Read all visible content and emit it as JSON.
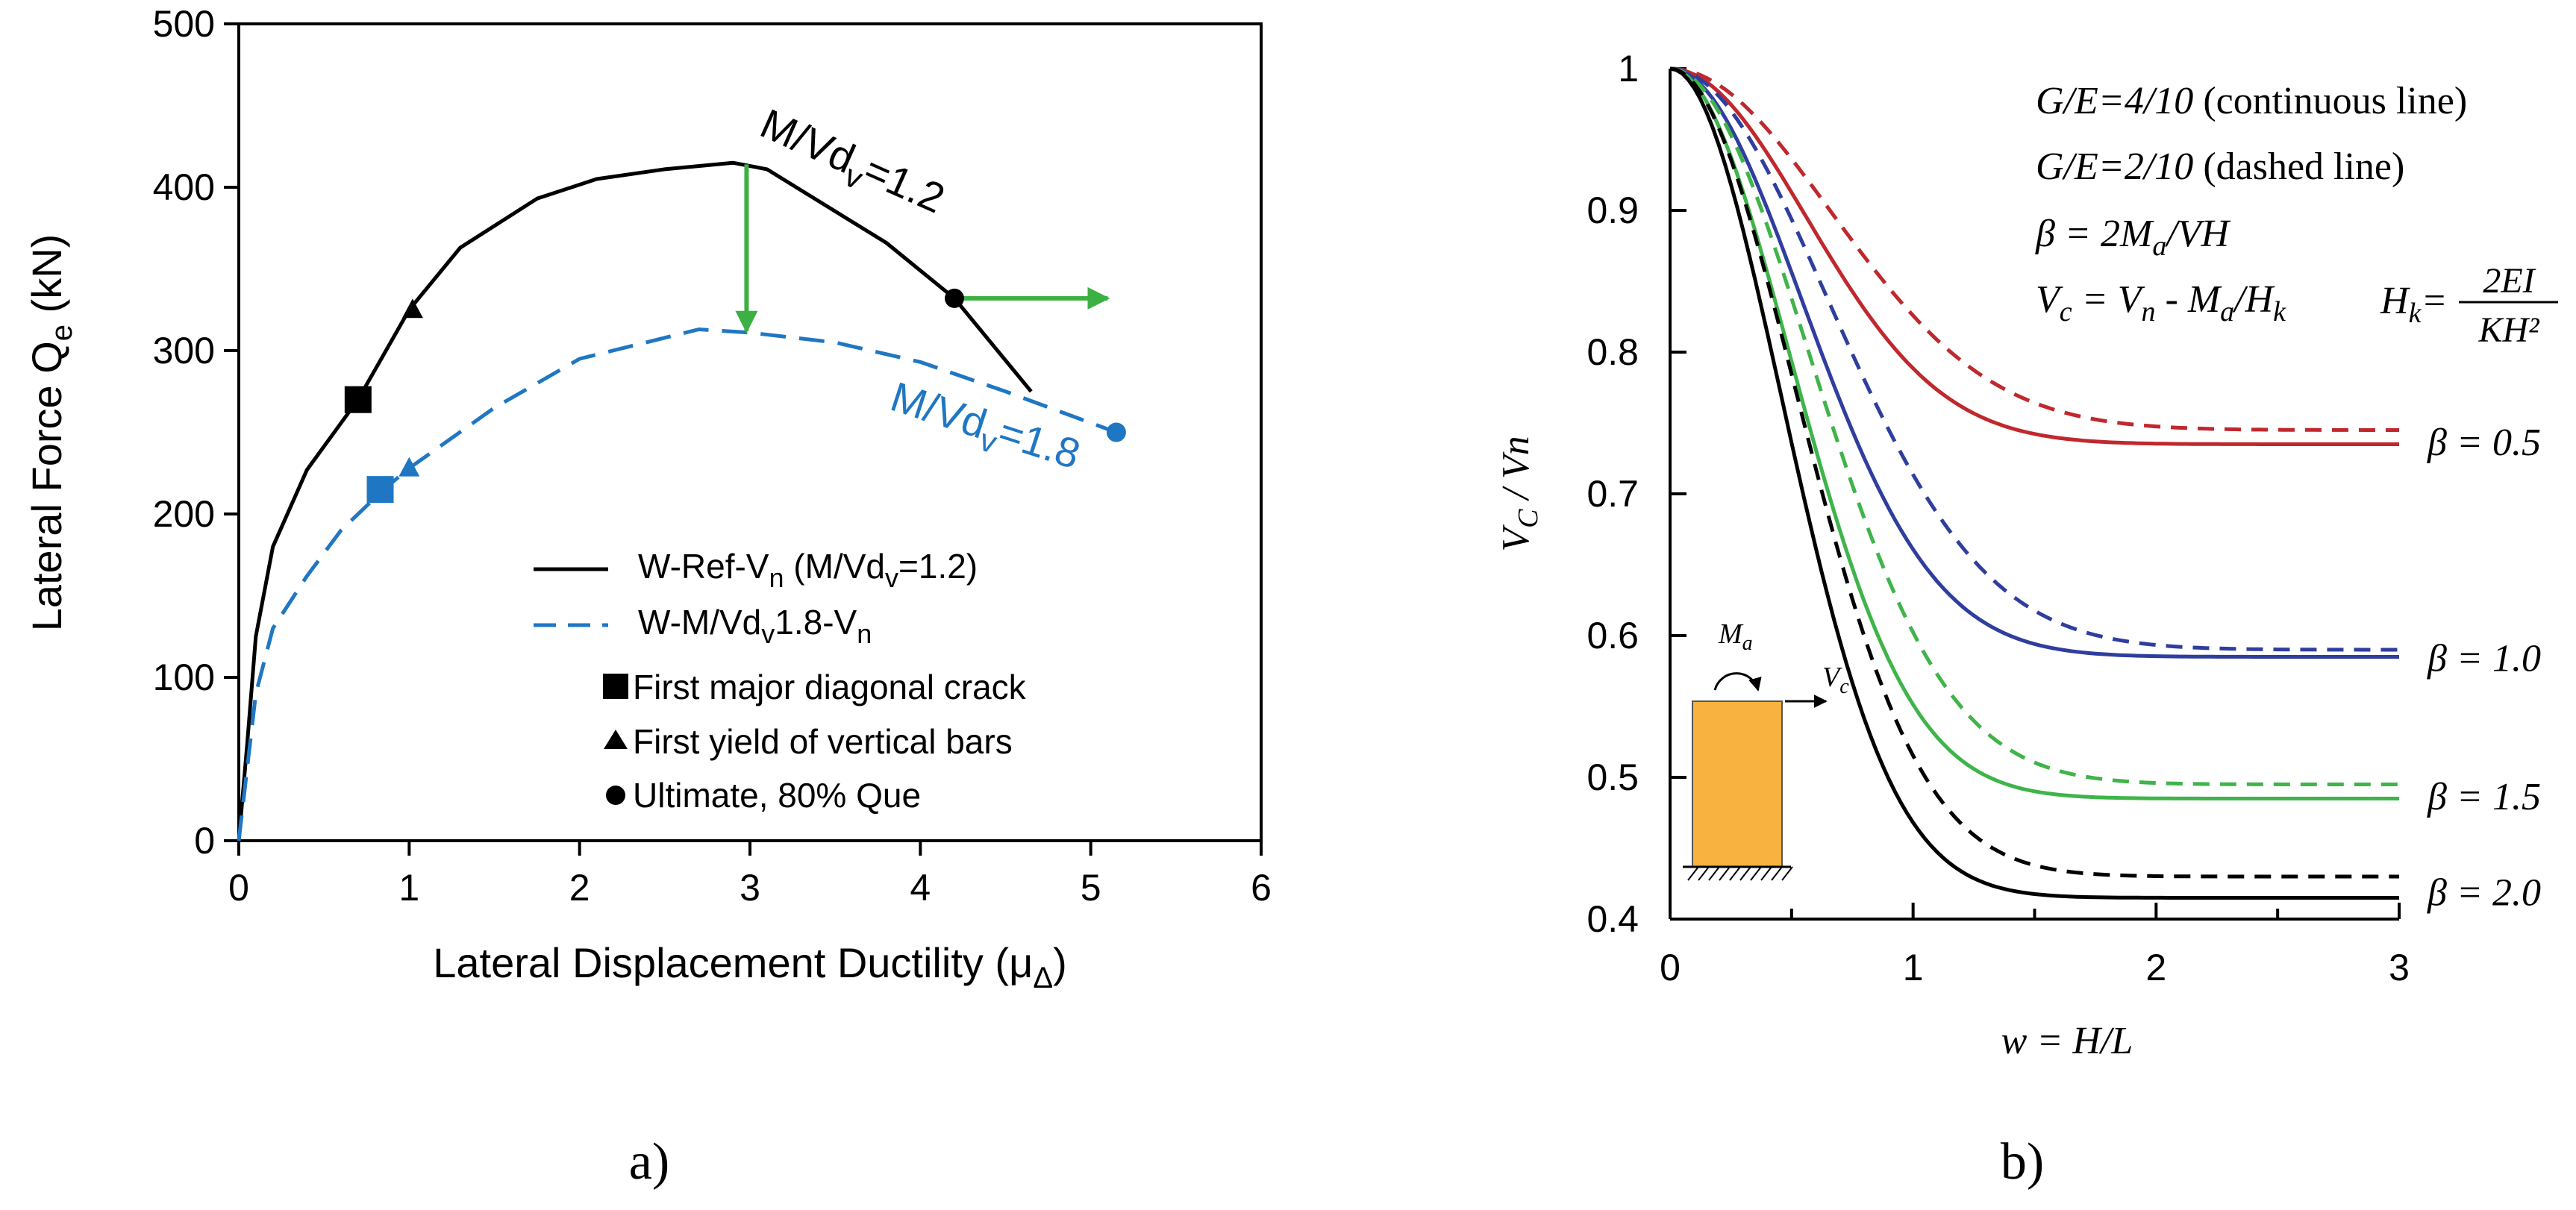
{
  "colors": {
    "black": "#000000",
    "blue_series": "#1f77c4",
    "green_arrow": "#3cb043",
    "red_curve": "#c0282d",
    "navy_curve": "#2f3e9e",
    "green_curve": "#3fb44a",
    "wall_fill": "#f7b23f"
  },
  "chart_data": [
    {
      "type": "line",
      "panel_label": "a)",
      "xlabel": "Lateral Displacement Ductility (μ",
      "xlabel_sub": "Δ",
      "xlabel_end": ")",
      "ylabel": "Lateral Force Q",
      "ylabel_sub": "e",
      "ylabel_end": " (kN)",
      "xlim": [
        0,
        6
      ],
      "ylim": [
        0,
        500
      ],
      "xticks": [
        "0",
        "1",
        "2",
        "3",
        "4",
        "5",
        "6"
      ],
      "yticks": [
        "0",
        "100",
        "200",
        "300",
        "400",
        "500"
      ],
      "series": [
        {
          "legend": "W-Ref-V",
          "legend_sub": "n",
          "legend_end": " (M/Vd",
          "legend_sub2": "v",
          "legend_end2": "=1.2)",
          "style": "solid",
          "color": "#000000",
          "x": [
            0.0,
            0.05,
            0.1,
            0.2,
            0.4,
            0.7,
            1.0,
            1.3,
            1.75,
            2.1,
            2.5,
            2.9,
            3.1,
            3.8,
            4.2,
            4.65
          ],
          "y": [
            0,
            60,
            125,
            180,
            227,
            270,
            325,
            363,
            393,
            405,
            411,
            415,
            411,
            366,
            332,
            275
          ]
        },
        {
          "legend": "W-M/Vd",
          "legend_sub": "v",
          "legend_end": "1.8-V",
          "legend_sub2": "n",
          "legend_end2": "",
          "style": "dashed",
          "color": "#1f77c4",
          "x": [
            0.0,
            0.05,
            0.1,
            0.2,
            0.4,
            0.6,
            0.85,
            1.0,
            1.5,
            2.0,
            2.7,
            3.0,
            3.5,
            4.0,
            4.5,
            5.15
          ],
          "y": [
            0,
            45,
            90,
            130,
            162,
            190,
            215,
            228,
            265,
            295,
            313,
            311,
            305,
            293,
            275,
            250
          ]
        }
      ],
      "markers": [
        {
          "shape": "square",
          "series": "black",
          "x": 0.7,
          "y": 270
        },
        {
          "shape": "triangle",
          "series": "black",
          "x": 1.02,
          "y": 325
        },
        {
          "shape": "circle",
          "series": "black",
          "x": 4.2,
          "y": 332
        },
        {
          "shape": "square",
          "series": "blue",
          "x": 0.83,
          "y": 215
        },
        {
          "shape": "triangle",
          "series": "blue",
          "x": 1.0,
          "y": 228
        },
        {
          "shape": "circle",
          "series": "blue",
          "x": 5.15,
          "y": 250
        }
      ],
      "arrows": [
        {
          "from": [
            2.98,
            414
          ],
          "to": [
            2.98,
            312
          ]
        },
        {
          "from": [
            4.2,
            332
          ],
          "to": [
            5.1,
            332
          ]
        }
      ],
      "annotations": [
        {
          "text": "M/Vd",
          "sub": "v",
          "end": "=1.2",
          "color": "#000000"
        },
        {
          "text": "M/Vd",
          "sub": "v",
          "end": "=1.8",
          "color": "#1f77c4"
        }
      ],
      "marker_legend": [
        {
          "shape": "square",
          "text": "First major diagonal crack"
        },
        {
          "shape": "triangle",
          "text": "First yield of vertical bars"
        },
        {
          "shape": "circle",
          "text": "Ultimate, 80% Que"
        }
      ]
    },
    {
      "type": "line",
      "panel_label": "b)",
      "xlabel": "w = H/L",
      "ylabel": "V",
      "ylabel_sub": "C",
      "ylabel_end": " / Vn",
      "xlim": [
        0,
        3
      ],
      "ylim": [
        0.4,
        1.0
      ],
      "xticks": [
        "0",
        "1",
        "2",
        "3"
      ],
      "yticks": [
        "0.4",
        "0.5",
        "0.6",
        "0.7",
        "0.8",
        "0.9",
        "1"
      ],
      "notes": [
        {
          "math": "G/E=4/10",
          "text": " (continuous line)"
        },
        {
          "math": "G/E=2/10",
          "text": " (dashed line)"
        },
        {
          "math": "β = 2M",
          "sub": "a",
          "math_end": "/VH"
        },
        {
          "math": "V",
          "sub": "c",
          "math_end": " = V",
          "sub2": "n",
          "math_end2": " - M",
          "sub3": "a",
          "math_end3": "/H",
          "sub4": "k"
        }
      ],
      "hk_formula": {
        "lhs": "H",
        "lhs_sub": "k",
        "eq": "=",
        "numerator": "2EI",
        "denominator": "KH²"
      },
      "series": [
        {
          "label": "β = 0.5",
          "color": "#c0282d",
          "solid_asymptote": 0.735,
          "solid_k": 1.6,
          "dashed_asymptote": 0.745,
          "dashed_k": 1.15
        },
        {
          "label": "β = 1.0",
          "color": "#2f3e9e",
          "solid_asymptote": 0.585,
          "solid_k": 1.7,
          "dashed_asymptote": 0.59,
          "dashed_k": 1.2
        },
        {
          "label": "β = 1.5",
          "color": "#3fb44a",
          "solid_asymptote": 0.485,
          "solid_k": 2.05,
          "dashed_asymptote": 0.495,
          "dashed_k": 1.55
        },
        {
          "label": "β = 2.0",
          "color": "#000000",
          "solid_asymptote": 0.415,
          "solid_k": 2.4,
          "dashed_asymptote": 0.43,
          "dashed_k": 1.9
        }
      ],
      "inset": {
        "moment_label": "M",
        "moment_sub": "a",
        "shear_label": "V",
        "shear_sub": "c"
      }
    }
  ]
}
